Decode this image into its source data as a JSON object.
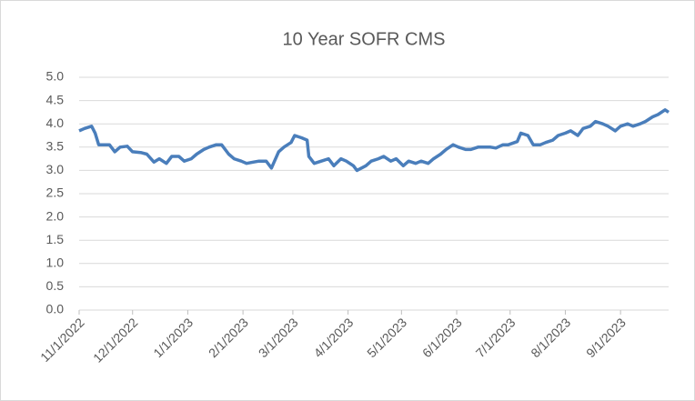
{
  "chart_data": {
    "type": "line",
    "title": "10 Year SOFR CMS",
    "x": [
      "11/1/2022",
      "11/4/2022",
      "11/8/2022",
      "11/10/2022",
      "11/12/2022",
      "11/18/2022",
      "11/21/2022",
      "11/24/2022",
      "11/28/2022",
      "12/1/2022",
      "12/6/2022",
      "12/9/2022",
      "12/13/2022",
      "12/16/2022",
      "12/20/2022",
      "12/23/2022",
      "12/27/2022",
      "12/30/2022",
      "1/3/2023",
      "1/6/2023",
      "1/10/2023",
      "1/13/2023",
      "1/17/2023",
      "1/20/2023",
      "1/24/2023",
      "1/27/2023",
      "1/31/2023",
      "2/3/2023",
      "2/7/2023",
      "2/10/2023",
      "2/14/2023",
      "2/17/2023",
      "2/21/2023",
      "2/24/2023",
      "2/28/2023",
      "3/2/2023",
      "3/6/2023",
      "3/9/2023",
      "3/10/2023",
      "3/13/2023",
      "3/17/2023",
      "3/21/2023",
      "3/24/2023",
      "3/28/2023",
      "3/31/2023",
      "4/4/2023",
      "4/6/2023",
      "4/11/2023",
      "4/14/2023",
      "4/18/2023",
      "4/21/2023",
      "4/25/2023",
      "4/28/2023",
      "5/2/2023",
      "5/5/2023",
      "5/9/2023",
      "5/12/2023",
      "5/16/2023",
      "5/19/2023",
      "5/23/2023",
      "5/26/2023",
      "5/30/2023",
      "6/2/2023",
      "6/6/2023",
      "6/9/2023",
      "6/13/2023",
      "6/16/2023",
      "6/20/2023",
      "6/23/2023",
      "6/27/2023",
      "6/30/2023",
      "7/5/2023",
      "7/7/2023",
      "7/11/2023",
      "7/14/2023",
      "7/18/2023",
      "7/21/2023",
      "7/25/2023",
      "7/28/2023",
      "8/1/2023",
      "8/4/2023",
      "8/8/2023",
      "8/11/2023",
      "8/15/2023",
      "8/18/2023",
      "8/22/2023",
      "8/25/2023",
      "8/29/2023",
      "9/1/2023",
      "9/5/2023",
      "9/8/2023",
      "9/12/2023",
      "9/15/2023",
      "9/19/2023",
      "9/22/2023",
      "9/26/2023",
      "9/28/2023"
    ],
    "series": [
      {
        "color": "#4a7ebb",
        "values": [
          3.85,
          3.9,
          3.95,
          3.8,
          3.55,
          3.55,
          3.4,
          3.5,
          3.52,
          3.4,
          3.38,
          3.35,
          3.18,
          3.25,
          3.15,
          3.3,
          3.3,
          3.2,
          3.25,
          3.35,
          3.45,
          3.5,
          3.55,
          3.55,
          3.35,
          3.25,
          3.2,
          3.15,
          3.18,
          3.2,
          3.2,
          3.05,
          3.4,
          3.5,
          3.6,
          3.75,
          3.7,
          3.65,
          3.3,
          3.15,
          3.2,
          3.25,
          3.1,
          3.25,
          3.2,
          3.1,
          3.0,
          3.1,
          3.2,
          3.25,
          3.3,
          3.2,
          3.25,
          3.1,
          3.2,
          3.15,
          3.2,
          3.15,
          3.25,
          3.35,
          3.45,
          3.55,
          3.5,
          3.45,
          3.45,
          3.5,
          3.5,
          3.5,
          3.48,
          3.55,
          3.55,
          3.62,
          3.8,
          3.75,
          3.55,
          3.55,
          3.6,
          3.65,
          3.75,
          3.8,
          3.85,
          3.75,
          3.9,
          3.95,
          4.05,
          4.0,
          3.95,
          3.85,
          3.95,
          4.0,
          3.95,
          4.0,
          4.05,
          4.15,
          4.2,
          4.3,
          4.25
        ]
      }
    ],
    "xlim": [
      "11/1/2022",
      "9/28/2023"
    ],
    "xticks": [
      "11/1/2022",
      "12/1/2022",
      "1/1/2023",
      "2/1/2023",
      "3/1/2023",
      "4/1/2023",
      "5/1/2023",
      "6/1/2023",
      "7/1/2023",
      "8/1/2023",
      "9/1/2023"
    ],
    "ylim": [
      0,
      5
    ],
    "yticks": [
      {
        "value": 0,
        "label": "0.0"
      },
      {
        "value": 0.5,
        "label": "0.5"
      },
      {
        "value": 1,
        "label": "1.0"
      },
      {
        "value": 1.5,
        "label": "1.5"
      },
      {
        "value": 2,
        "label": "2.0"
      },
      {
        "value": 2.5,
        "label": "2.5"
      },
      {
        "value": 3,
        "label": "3.0"
      },
      {
        "value": 3.5,
        "label": "3.5"
      },
      {
        "value": 4,
        "label": "4.0"
      },
      {
        "value": 4.5,
        "label": "4.5"
      },
      {
        "value": 5,
        "label": "5.0"
      }
    ],
    "grid": true
  }
}
